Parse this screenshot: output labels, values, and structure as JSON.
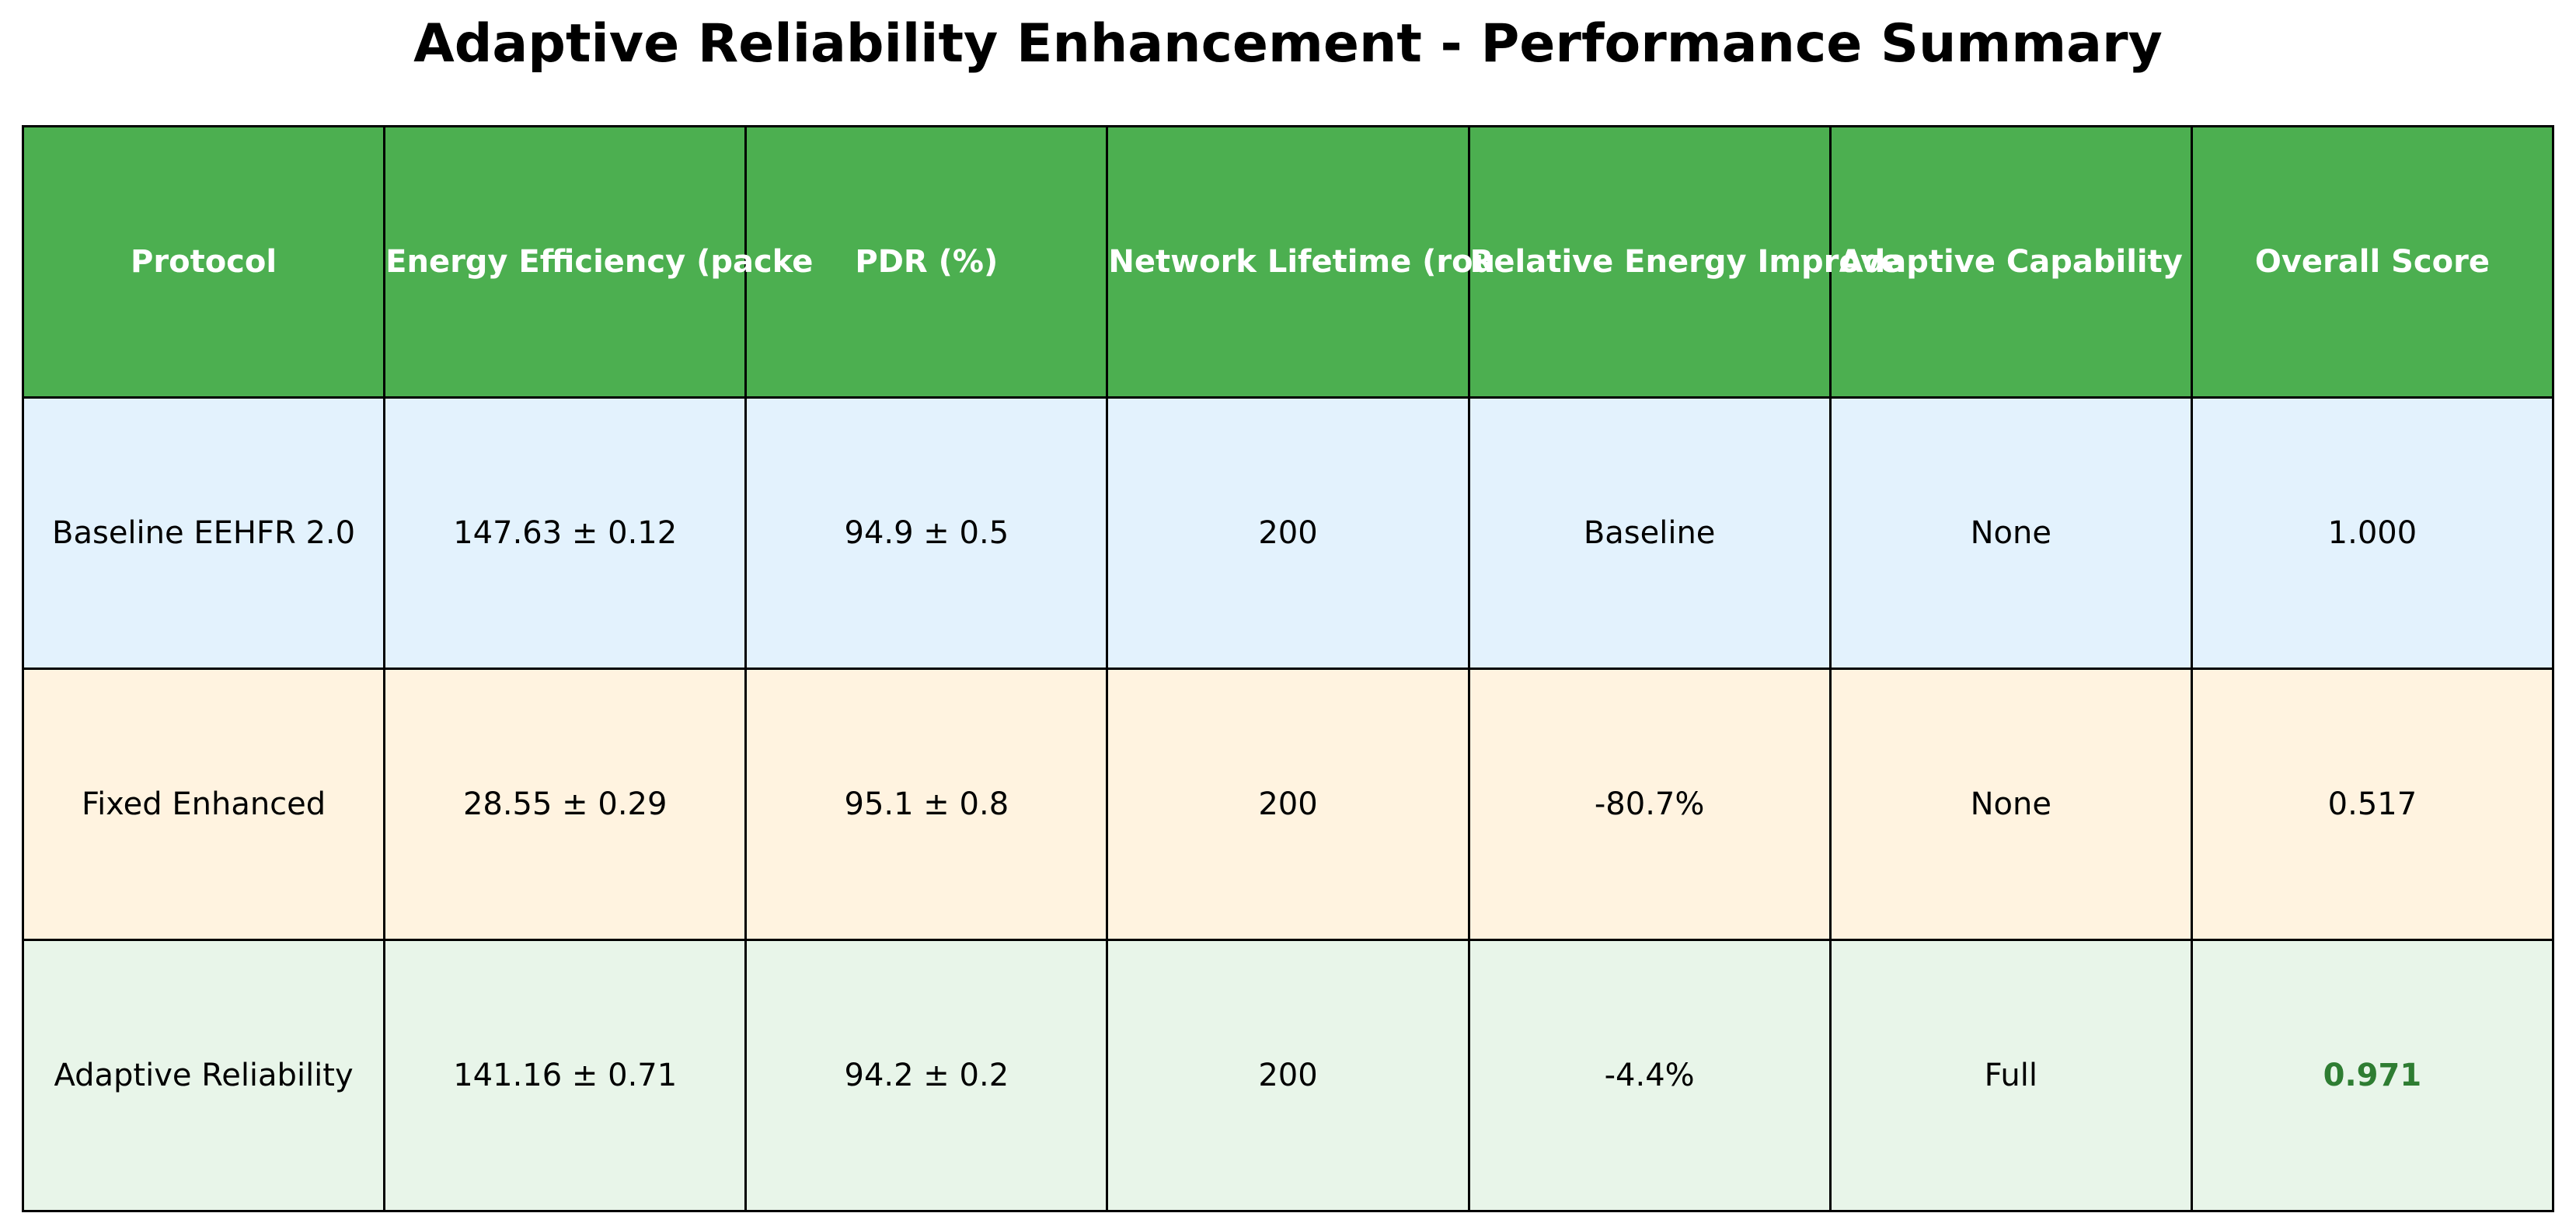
{
  "chart_data": {
    "type": "table",
    "title": "Adaptive Reliability Enhancement - Performance Summary",
    "columns": [
      "Protocol",
      "Energy Efficiency (packe",
      "PDR (%)",
      "Network Lifetime (rou",
      "Relative Energy Improve",
      "Adaptive Capability",
      "Overall Score"
    ],
    "rows": [
      [
        "Baseline EEHFR 2.0",
        "147.63 ± 0.12",
        "94.9 ± 0.5",
        "200",
        "Baseline",
        "None",
        "1.000"
      ],
      [
        "Fixed Enhanced",
        "28.55 ± 0.29",
        "95.1 ± 0.8",
        "200",
        "-80.7%",
        "None",
        "0.517"
      ],
      [
        "Adaptive Reliability",
        "141.16 ± 0.71",
        "94.2 ± 0.2",
        "200",
        "-4.4%",
        "Full",
        "0.971"
      ]
    ],
    "colors": {
      "header_bg": "#4caf50",
      "header_text": "#ffffff",
      "row_backgrounds": [
        "#e3f2fd",
        "#fff3e0",
        "#e8f5e9"
      ],
      "highlight_text": "#2e7d32",
      "border": "#000000"
    },
    "highlighted_cell": {
      "row": 2,
      "column": 6
    }
  }
}
